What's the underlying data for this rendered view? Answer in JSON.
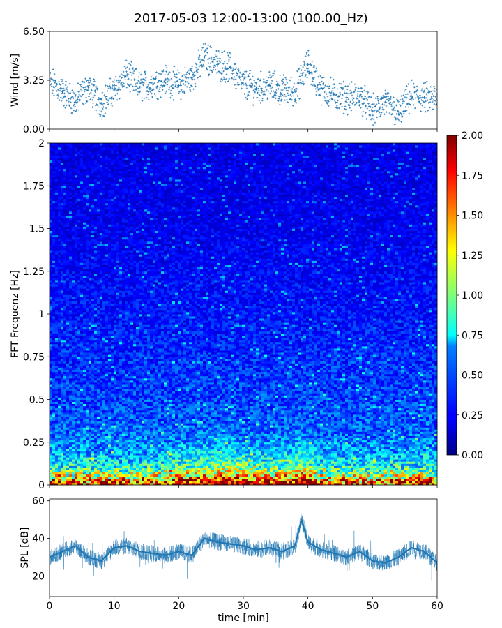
{
  "figure": {
    "title": "2017-05-03 12:00-13:00 (100.00_Hz)"
  },
  "chart_data": [
    {
      "type": "scatter",
      "panel": "wind",
      "ylabel": "Wind [m/s]",
      "xlabel": "",
      "xlim": [
        0,
        60
      ],
      "ylim": [
        0.0,
        6.5
      ],
      "yticks": [
        "0.00",
        "3.25",
        "6.50"
      ],
      "marker": "+",
      "color": "#1f77b4",
      "series": [
        {
          "x": [
            0,
            2,
            4,
            6,
            8,
            10,
            12,
            14,
            16,
            18,
            20,
            22,
            24,
            26,
            28,
            30,
            32,
            34,
            36,
            38,
            40,
            42,
            44,
            46,
            48,
            50,
            52,
            54,
            56,
            58,
            60
          ],
          "values": [
            3.2,
            2.5,
            1.8,
            2.8,
            1.7,
            2.6,
            3.6,
            2.8,
            3.0,
            3.3,
            2.9,
            3.4,
            4.8,
            4.3,
            4.1,
            3.0,
            2.7,
            2.9,
            2.6,
            2.5,
            4.3,
            2.7,
            2.3,
            2.1,
            2.2,
            1.2,
            1.8,
            1.0,
            2.2,
            2.1,
            2.0
          ]
        }
      ]
    },
    {
      "type": "heatmap",
      "panel": "spectrogram",
      "ylabel": "FFT Frequenz [Hz]",
      "xlabel": "",
      "xlim": [
        0,
        60
      ],
      "ylim": [
        0,
        2
      ],
      "yticks": [
        "0",
        "0.25",
        "0.5",
        "0.75",
        "1",
        "1.25",
        "1.5",
        "1.75",
        "2"
      ],
      "colormap": "jet",
      "colorbar": {
        "range": [
          0.0,
          2.0
        ],
        "ticks": [
          "0.00",
          "0.25",
          "0.50",
          "0.75",
          "1.00",
          "1.25",
          "1.50",
          "1.75",
          "2.00"
        ]
      },
      "profile": {
        "freq_hz": [
          0.0,
          0.05,
          0.1,
          0.2,
          0.3,
          0.5,
          0.75,
          1.0,
          1.5,
          2.0
        ],
        "level": [
          1.9,
          1.2,
          0.8,
          0.55,
          0.45,
          0.38,
          0.33,
          0.28,
          0.22,
          0.2
        ]
      }
    },
    {
      "type": "line",
      "panel": "spl",
      "ylabel": "SPL [dB]",
      "xlabel": "time [min]",
      "xlim": [
        0,
        60
      ],
      "ylim": [
        9,
        61
      ],
      "yticks": [
        "20",
        "40",
        "60"
      ],
      "xticks": [
        "0",
        "10",
        "20",
        "30",
        "40",
        "50",
        "60"
      ],
      "color": "#1f77b4",
      "series": [
        {
          "x": [
            0,
            2,
            4,
            6,
            8,
            10,
            12,
            14,
            16,
            18,
            20,
            22,
            24,
            26,
            28,
            30,
            32,
            34,
            36,
            38,
            39,
            40,
            42,
            44,
            46,
            48,
            50,
            52,
            54,
            56,
            58,
            60
          ],
          "values": [
            30,
            33,
            36,
            30,
            28,
            35,
            36,
            33,
            32,
            31,
            33,
            31,
            40,
            38,
            37,
            36,
            34,
            35,
            33,
            36,
            50,
            38,
            34,
            32,
            30,
            33,
            28,
            27,
            30,
            35,
            33,
            27
          ]
        }
      ]
    }
  ]
}
